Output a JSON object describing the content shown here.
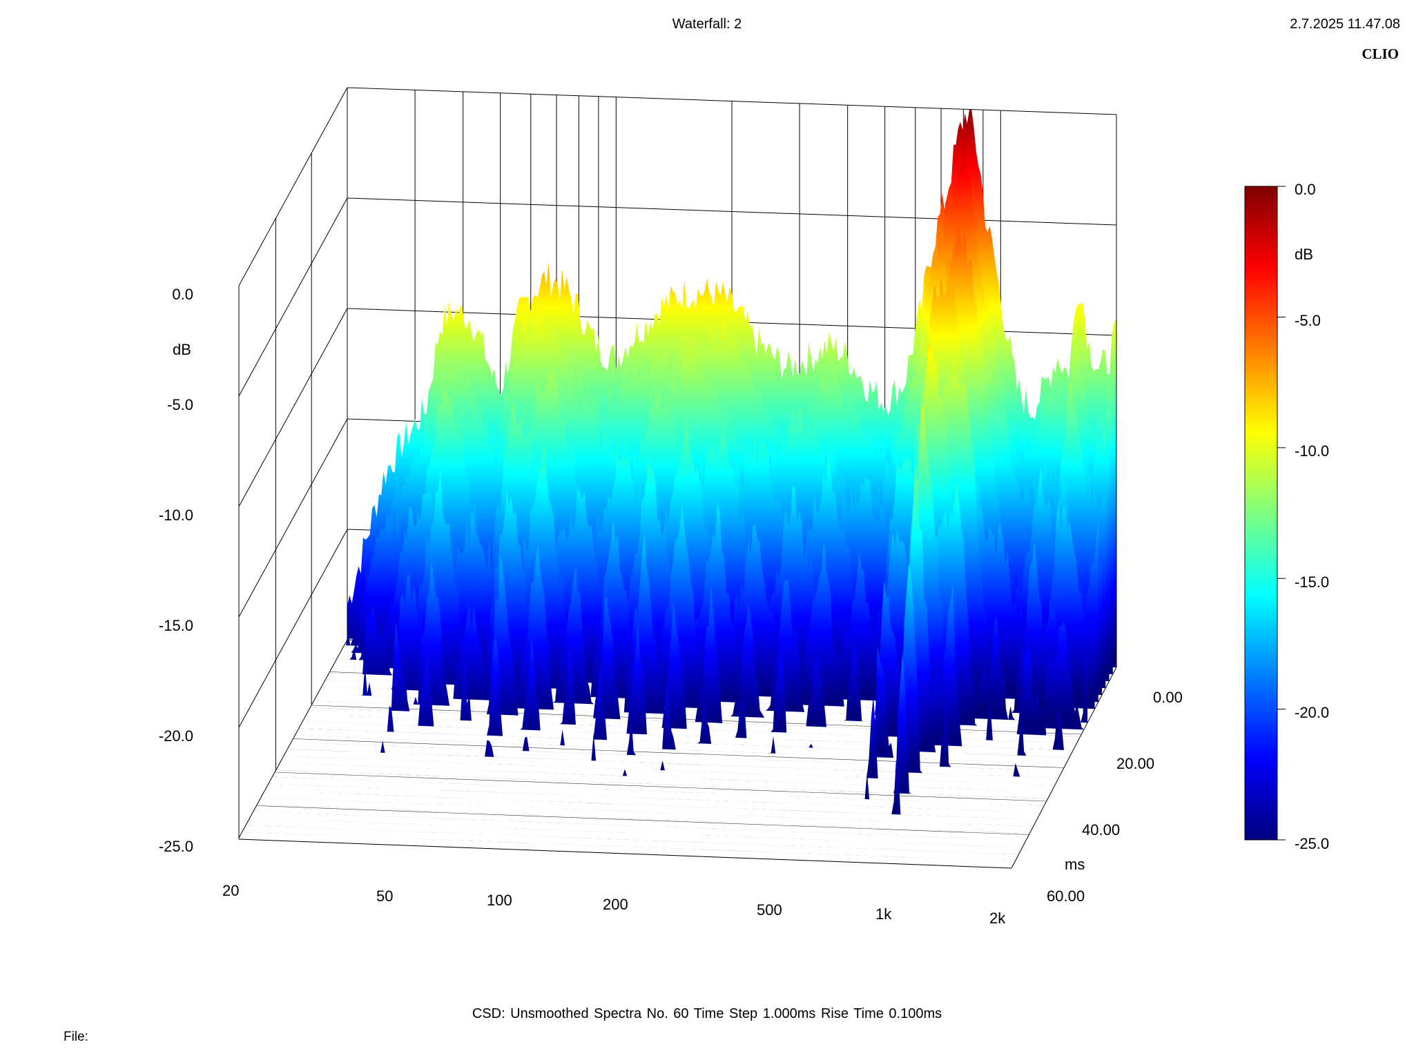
{
  "header": {
    "title": "Waterfall: 2",
    "datetime": "2.7.2025 11.47.08",
    "brand": "CLIO"
  },
  "footer": {
    "info": "CSD:   Unsmoothed   Spectra No. 60   Time Step 1.000ms   Rise Time 0.100ms",
    "file": "File:"
  },
  "chart_data": {
    "type": "waterfall",
    "x_axis": {
      "scale": "log",
      "range": [
        20,
        2000
      ],
      "ticks": [
        {
          "value": 20,
          "label": "20"
        },
        {
          "value": 50,
          "label": "50"
        },
        {
          "value": 100,
          "label": "100"
        },
        {
          "value": 200,
          "label": "200"
        },
        {
          "value": 500,
          "label": "500"
        },
        {
          "value": 1000,
          "label": "1k"
        },
        {
          "value": 2000,
          "label": "2k"
        }
      ]
    },
    "y_axis": {
      "label": "dB",
      "range": [
        -25,
        0
      ],
      "ticks": [
        {
          "value": 0,
          "label": "0.0"
        },
        {
          "value": -5,
          "label": "-5.0"
        },
        {
          "value": -10,
          "label": "-10.0"
        },
        {
          "value": -15,
          "label": "-15.0"
        },
        {
          "value": -20,
          "label": "-20.0"
        },
        {
          "value": -25,
          "label": "-25.0"
        }
      ]
    },
    "z_axis": {
      "label": "ms",
      "range": [
        0,
        60
      ],
      "ticks": [
        {
          "value": 0,
          "label": "0.00"
        },
        {
          "value": 20,
          "label": "20.00"
        },
        {
          "value": 40,
          "label": "40.00"
        },
        {
          "value": 60,
          "label": "60.00"
        }
      ]
    },
    "colorbar": {
      "label": "dB",
      "range": [
        -25,
        0
      ],
      "ticks": [
        {
          "value": 0,
          "label": "0.0"
        },
        {
          "value": -5,
          "label": "-5.0"
        },
        {
          "value": -10,
          "label": "-10.0"
        },
        {
          "value": -15,
          "label": "-15.0"
        },
        {
          "value": -20,
          "label": "-20.0"
        },
        {
          "value": -25,
          "label": "-25.0"
        }
      ],
      "colors": [
        "#00007f",
        "#0000ff",
        "#007fff",
        "#00ffff",
        "#7fff7f",
        "#ffff00",
        "#ff7f00",
        "#ff0000",
        "#7f0000"
      ]
    },
    "first_spectrum": {
      "time_ms": 0,
      "points": [
        [
          20,
          -23.5
        ],
        [
          22,
          -21
        ],
        [
          25,
          -17.5
        ],
        [
          28,
          -16
        ],
        [
          32,
          -14.5
        ],
        [
          35,
          -10.5
        ],
        [
          38,
          -10
        ],
        [
          42,
          -10.3
        ],
        [
          45,
          -11.5
        ],
        [
          48,
          -13
        ],
        [
          50,
          -13.5
        ],
        [
          53,
          -11.8
        ],
        [
          56,
          -10
        ],
        [
          60,
          -9.1
        ],
        [
          63,
          -8.7
        ],
        [
          66,
          -8.3
        ],
        [
          70,
          -8.5
        ],
        [
          75,
          -8.9
        ],
        [
          80,
          -9.7
        ],
        [
          85,
          -10.7
        ],
        [
          90,
          -11.4
        ],
        [
          95,
          -11.7
        ],
        [
          100,
          -11.9
        ],
        [
          110,
          -10.9
        ],
        [
          120,
          -10.2
        ],
        [
          130,
          -9.5
        ],
        [
          140,
          -9.1
        ],
        [
          150,
          -8.8
        ],
        [
          170,
          -8.7
        ],
        [
          190,
          -8.9
        ],
        [
          210,
          -9.7
        ],
        [
          230,
          -10.8
        ],
        [
          250,
          -11.4
        ],
        [
          280,
          -12
        ],
        [
          320,
          -11.5
        ],
        [
          360,
          -10.9
        ],
        [
          400,
          -11.4
        ],
        [
          450,
          -12.7
        ],
        [
          500,
          -13.4
        ],
        [
          560,
          -12.5
        ],
        [
          620,
          -9.2
        ],
        [
          650,
          -7
        ],
        [
          680,
          -5.5
        ],
        [
          720,
          -4
        ],
        [
          760,
          -2
        ],
        [
          790,
          -0.7
        ],
        [
          820,
          0
        ],
        [
          850,
          -0.9
        ],
        [
          880,
          -2.5
        ],
        [
          920,
          -5.2
        ],
        [
          960,
          -6.5
        ],
        [
          1000,
          -8.5
        ],
        [
          1050,
          -10.5
        ],
        [
          1100,
          -12.5
        ],
        [
          1200,
          -13.5
        ],
        [
          1300,
          -12.5
        ],
        [
          1400,
          -11
        ],
        [
          1500,
          -11.8
        ],
        [
          1600,
          -7.5
        ],
        [
          1700,
          -10.5
        ],
        [
          1800,
          -11.5
        ],
        [
          1900,
          -11.2
        ],
        [
          2000,
          -9.8
        ]
      ]
    },
    "decay_per_ms_db": 0.8,
    "peak": {
      "frequency_hz": 820,
      "level_db": 0
    }
  }
}
